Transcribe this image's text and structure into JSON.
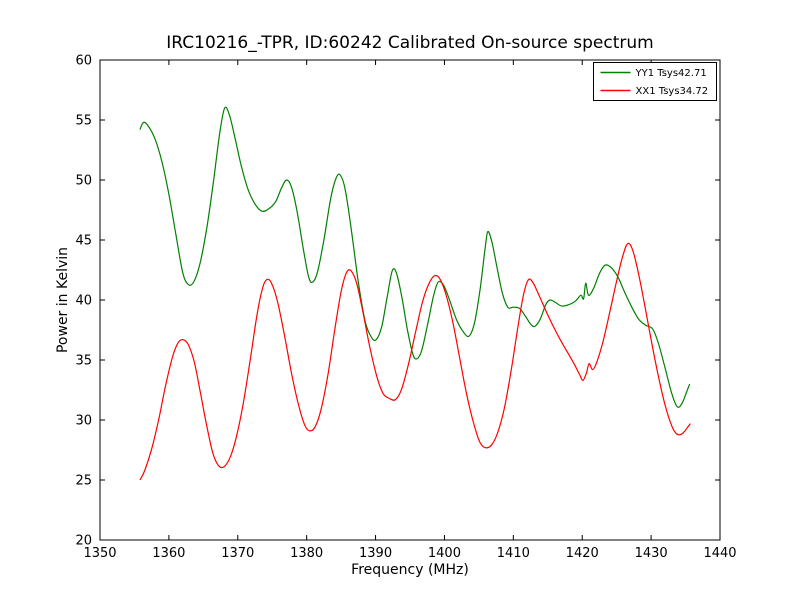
{
  "chart_data": {
    "type": "line",
    "title": "IRC10216_-TPR, ID:60242 Calibrated On-source spectrum",
    "xlabel": "Frequency (MHz)",
    "ylabel": "Power in Kelvin",
    "xlim": [
      1350,
      1440
    ],
    "ylim": [
      20,
      60
    ],
    "x_ticks": [
      1350,
      1360,
      1370,
      1380,
      1390,
      1400,
      1410,
      1420,
      1430,
      1440
    ],
    "y_ticks": [
      20,
      25,
      30,
      35,
      40,
      45,
      50,
      55,
      60
    ],
    "grid": false,
    "legend_position": "upper right",
    "axis_color": "#000000",
    "background_color": "#ffffff",
    "series": [
      {
        "name": "YY1 Tsys42.71",
        "color": "#008000",
        "points": [
          [
            1355.8,
            54.2
          ],
          [
            1356.3,
            54.8
          ],
          [
            1357,
            54.5
          ],
          [
            1358,
            53.4
          ],
          [
            1359,
            51.5
          ],
          [
            1360,
            48.8
          ],
          [
            1361,
            45.5
          ],
          [
            1362,
            42.3
          ],
          [
            1362.8,
            41.3
          ],
          [
            1363.6,
            41.5
          ],
          [
            1364.5,
            43.0
          ],
          [
            1365.5,
            46.0
          ],
          [
            1366.5,
            50.0
          ],
          [
            1367.4,
            54.0
          ],
          [
            1368.1,
            56.0
          ],
          [
            1368.8,
            55.4
          ],
          [
            1369.6,
            53.5
          ],
          [
            1370.5,
            51.2
          ],
          [
            1371.5,
            49.2
          ],
          [
            1372.5,
            48.0
          ],
          [
            1373.5,
            47.4
          ],
          [
            1374.5,
            47.6
          ],
          [
            1375.5,
            48.2
          ],
          [
            1376.4,
            49.4
          ],
          [
            1377.1,
            50.0
          ],
          [
            1377.8,
            49.4
          ],
          [
            1378.6,
            47.4
          ],
          [
            1379.5,
            44.3
          ],
          [
            1380.3,
            41.9
          ],
          [
            1380.9,
            41.5
          ],
          [
            1381.6,
            42.4
          ],
          [
            1382.5,
            45.0
          ],
          [
            1383.5,
            48.5
          ],
          [
            1384.3,
            50.2
          ],
          [
            1384.9,
            50.4
          ],
          [
            1385.6,
            49.2
          ],
          [
            1386.5,
            45.8
          ],
          [
            1387.5,
            41.5
          ],
          [
            1388.5,
            38.2
          ],
          [
            1389.4,
            36.9
          ],
          [
            1390.1,
            36.7
          ],
          [
            1390.9,
            37.8
          ],
          [
            1391.7,
            40.3
          ],
          [
            1392.4,
            42.4
          ],
          [
            1393,
            42.3
          ],
          [
            1393.8,
            40.3
          ],
          [
            1394.6,
            37.6
          ],
          [
            1395.4,
            35.5
          ],
          [
            1396,
            35.1
          ],
          [
            1396.7,
            35.8
          ],
          [
            1397.5,
            37.8
          ],
          [
            1398.4,
            40.3
          ],
          [
            1399.1,
            41.5
          ],
          [
            1399.9,
            41.2
          ],
          [
            1400.8,
            39.9
          ],
          [
            1401.8,
            38.3
          ],
          [
            1402.8,
            37.3
          ],
          [
            1403.6,
            37.0
          ],
          [
            1404.4,
            38.2
          ],
          [
            1405.2,
            41.0
          ],
          [
            1405.9,
            44.3
          ],
          [
            1406.3,
            45.7
          ],
          [
            1406.9,
            44.8
          ],
          [
            1407.6,
            42.8
          ],
          [
            1408.4,
            40.6
          ],
          [
            1409.2,
            39.4
          ],
          [
            1410,
            39.4
          ],
          [
            1410.9,
            39.3
          ],
          [
            1411.7,
            38.7
          ],
          [
            1412.5,
            38.0
          ],
          [
            1413.1,
            37.8
          ],
          [
            1413.9,
            38.4
          ],
          [
            1414.7,
            39.6
          ],
          [
            1415.3,
            40.0
          ],
          [
            1416.1,
            39.8
          ],
          [
            1417,
            39.5
          ],
          [
            1418,
            39.6
          ],
          [
            1419,
            39.9
          ],
          [
            1419.8,
            40.4
          ],
          [
            1420.2,
            40.1
          ],
          [
            1420.5,
            41.4
          ],
          [
            1420.9,
            40.4
          ],
          [
            1421.6,
            40.9
          ],
          [
            1422.5,
            42.2
          ],
          [
            1423.3,
            42.9
          ],
          [
            1424.2,
            42.7
          ],
          [
            1425.2,
            41.9
          ],
          [
            1426.2,
            40.6
          ],
          [
            1427.2,
            39.4
          ],
          [
            1428.2,
            38.4
          ],
          [
            1429.2,
            37.9
          ],
          [
            1430.2,
            37.6
          ],
          [
            1431,
            36.5
          ],
          [
            1432,
            34.4
          ],
          [
            1433,
            32.2
          ],
          [
            1433.8,
            31.1
          ],
          [
            1434.5,
            31.4
          ],
          [
            1435.2,
            32.4
          ],
          [
            1435.6,
            33.0
          ]
        ]
      },
      {
        "name": "XX1 Tsys34.72",
        "color": "#ff0000",
        "points": [
          [
            1355.8,
            25.0
          ],
          [
            1356.5,
            25.8
          ],
          [
            1357.5,
            27.6
          ],
          [
            1358.5,
            30.0
          ],
          [
            1359.5,
            32.8
          ],
          [
            1360.5,
            35.2
          ],
          [
            1361.3,
            36.4
          ],
          [
            1362,
            36.7
          ],
          [
            1362.8,
            36.3
          ],
          [
            1363.7,
            34.8
          ],
          [
            1364.6,
            32.2
          ],
          [
            1365.5,
            29.5
          ],
          [
            1366.4,
            27.2
          ],
          [
            1367.2,
            26.2
          ],
          [
            1368,
            26.1
          ],
          [
            1368.9,
            26.9
          ],
          [
            1369.8,
            28.6
          ],
          [
            1370.8,
            31.4
          ],
          [
            1371.8,
            35.0
          ],
          [
            1372.8,
            38.8
          ],
          [
            1373.6,
            41.0
          ],
          [
            1374.2,
            41.7
          ],
          [
            1374.9,
            41.4
          ],
          [
            1375.8,
            39.8
          ],
          [
            1376.8,
            37.0
          ],
          [
            1377.8,
            33.9
          ],
          [
            1378.8,
            31.3
          ],
          [
            1379.7,
            29.6
          ],
          [
            1380.4,
            29.1
          ],
          [
            1381.2,
            29.4
          ],
          [
            1382.1,
            30.9
          ],
          [
            1383.1,
            33.8
          ],
          [
            1384.1,
            37.6
          ],
          [
            1385,
            40.7
          ],
          [
            1385.8,
            42.3
          ],
          [
            1386.5,
            42.4
          ],
          [
            1387.3,
            41.3
          ],
          [
            1388.2,
            38.9
          ],
          [
            1389.2,
            36.0
          ],
          [
            1390.2,
            33.6
          ],
          [
            1391.1,
            32.2
          ],
          [
            1392,
            31.8
          ],
          [
            1392.9,
            31.7
          ],
          [
            1393.8,
            32.6
          ],
          [
            1394.8,
            34.7
          ],
          [
            1395.8,
            37.3
          ],
          [
            1396.8,
            39.8
          ],
          [
            1397.7,
            41.3
          ],
          [
            1398.5,
            42.0
          ],
          [
            1399.3,
            41.8
          ],
          [
            1400.2,
            40.5
          ],
          [
            1401.2,
            38.2
          ],
          [
            1402.2,
            35.2
          ],
          [
            1403.2,
            32.2
          ],
          [
            1404.2,
            29.8
          ],
          [
            1405.1,
            28.2
          ],
          [
            1405.9,
            27.7
          ],
          [
            1406.8,
            27.9
          ],
          [
            1407.7,
            28.9
          ],
          [
            1408.7,
            31.0
          ],
          [
            1409.7,
            34.2
          ],
          [
            1410.7,
            37.9
          ],
          [
            1411.5,
            40.5
          ],
          [
            1412.2,
            41.7
          ],
          [
            1412.9,
            41.4
          ],
          [
            1413.8,
            40.3
          ],
          [
            1414.8,
            39.0
          ],
          [
            1415.8,
            37.8
          ],
          [
            1416.8,
            36.7
          ],
          [
            1417.8,
            35.7
          ],
          [
            1418.8,
            34.7
          ],
          [
            1419.6,
            33.8
          ],
          [
            1420.1,
            33.3
          ],
          [
            1420.6,
            33.9
          ],
          [
            1421,
            34.7
          ],
          [
            1421.5,
            34.2
          ],
          [
            1422.1,
            34.8
          ],
          [
            1423,
            36.5
          ],
          [
            1424,
            39.0
          ],
          [
            1425,
            41.6
          ],
          [
            1425.9,
            43.7
          ],
          [
            1426.6,
            44.7
          ],
          [
            1427.3,
            44.2
          ],
          [
            1428.1,
            42.4
          ],
          [
            1429,
            39.8
          ],
          [
            1430,
            36.7
          ],
          [
            1431,
            33.8
          ],
          [
            1432,
            31.3
          ],
          [
            1433,
            29.5
          ],
          [
            1433.8,
            28.8
          ],
          [
            1434.6,
            28.9
          ],
          [
            1435.3,
            29.4
          ],
          [
            1435.7,
            29.7
          ]
        ]
      }
    ]
  }
}
